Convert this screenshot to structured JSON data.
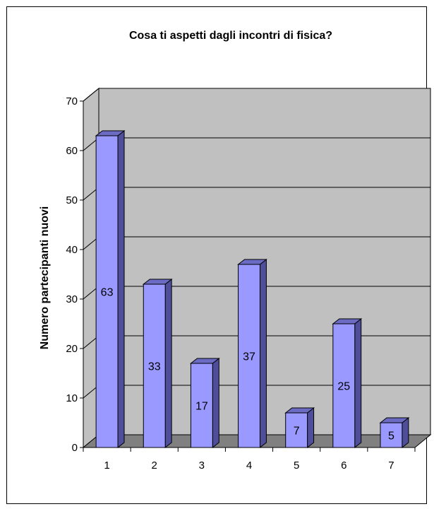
{
  "chart_data": {
    "type": "bar",
    "title": "Cosa ti aspetti dagli incontri di fisica?",
    "xlabel": "",
    "ylabel": "Numero partecipanti nuovi",
    "categories": [
      "1",
      "2",
      "3",
      "4",
      "5",
      "6",
      "7"
    ],
    "values": [
      63,
      33,
      17,
      37,
      7,
      25,
      5
    ],
    "ylim": [
      0,
      70
    ],
    "yticks": [
      0,
      10,
      20,
      30,
      40,
      50,
      60,
      70
    ],
    "grid": true,
    "legend": "none",
    "style": "3d",
    "colors": {
      "bar_front": "#9999ff",
      "bar_side": "#4e4e9a",
      "bar_top": "#6b6bc4",
      "wall": "#c0c0c0",
      "floor": "#808080",
      "gridline": "#000000"
    }
  }
}
